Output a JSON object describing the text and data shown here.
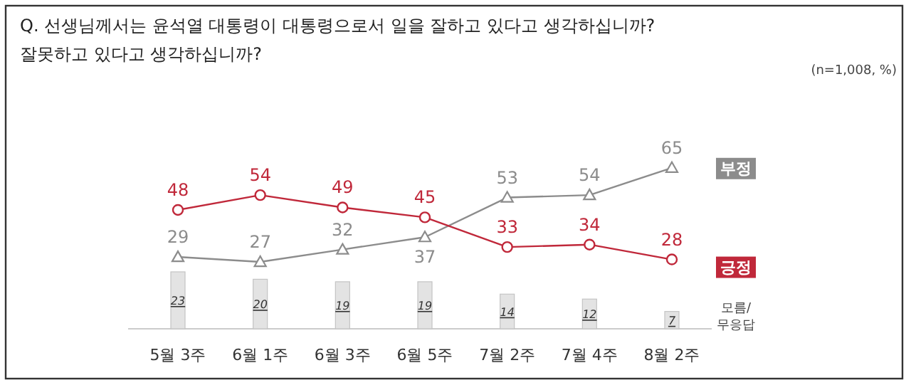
{
  "chart_data": {
    "type": "line",
    "title": "Q. 선생님께서는 윤석열 대통령이 대통령으로서 일을 잘하고 있다고 생각하십니까?\n잘못하고 있다고 생각하십니까?",
    "annotations": [
      "(n=1,008, %)"
    ],
    "categories": [
      "5월 3주",
      "6월 1주",
      "6월 3주",
      "6월 5주",
      "7월 2주",
      "7월 4주",
      "8월 2주"
    ],
    "series": [
      {
        "name": "부정",
        "color": "#8c8c8c",
        "marker": "triangle",
        "values": [
          29,
          27,
          32,
          37,
          53,
          54,
          65
        ]
      },
      {
        "name": "긍정",
        "color": "#c0283a",
        "marker": "circle",
        "values": [
          48,
          54,
          49,
          45,
          33,
          34,
          28
        ]
      },
      {
        "name": "모름/\n무응답",
        "type": "bar",
        "color": "#e3e3e3",
        "values": [
          23,
          20,
          19,
          19,
          14,
          12,
          7
        ]
      }
    ],
    "data_labels": true
  }
}
